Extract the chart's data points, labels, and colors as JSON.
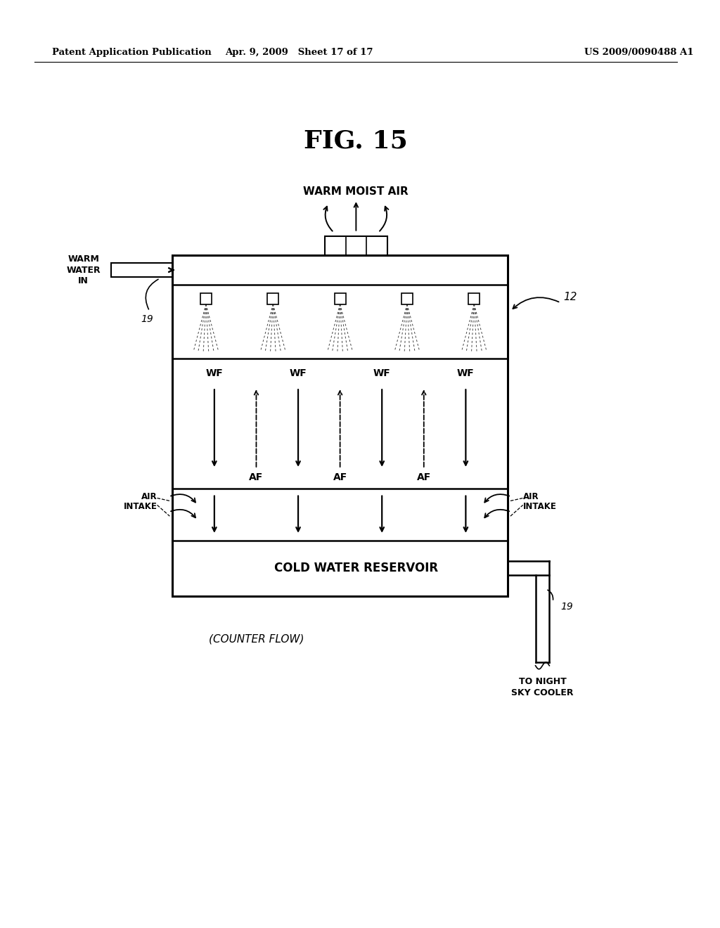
{
  "bg_color": "#ffffff",
  "text_color": "#000000",
  "header_left": "Patent Application Publication",
  "header_mid": "Apr. 9, 2009   Sheet 17 of 17",
  "header_right": "US 2009/0090488 A1",
  "fig_label": "FIG. 15",
  "warm_moist_air": "WARM MOIST AIR",
  "warm_water_in": [
    "WARM",
    "WATER",
    "IN"
  ],
  "wf_label": "WF",
  "af_label": "AF",
  "air_intake": [
    "AIR",
    "INTAKE"
  ],
  "cold_reservoir": "COLD WATER RESERVOIR",
  "counter_flow": "(COUNTER FLOW)",
  "label_12": "12",
  "label_19": "19",
  "to_night": [
    "TO NIGHT",
    "SKY COOLER"
  ]
}
